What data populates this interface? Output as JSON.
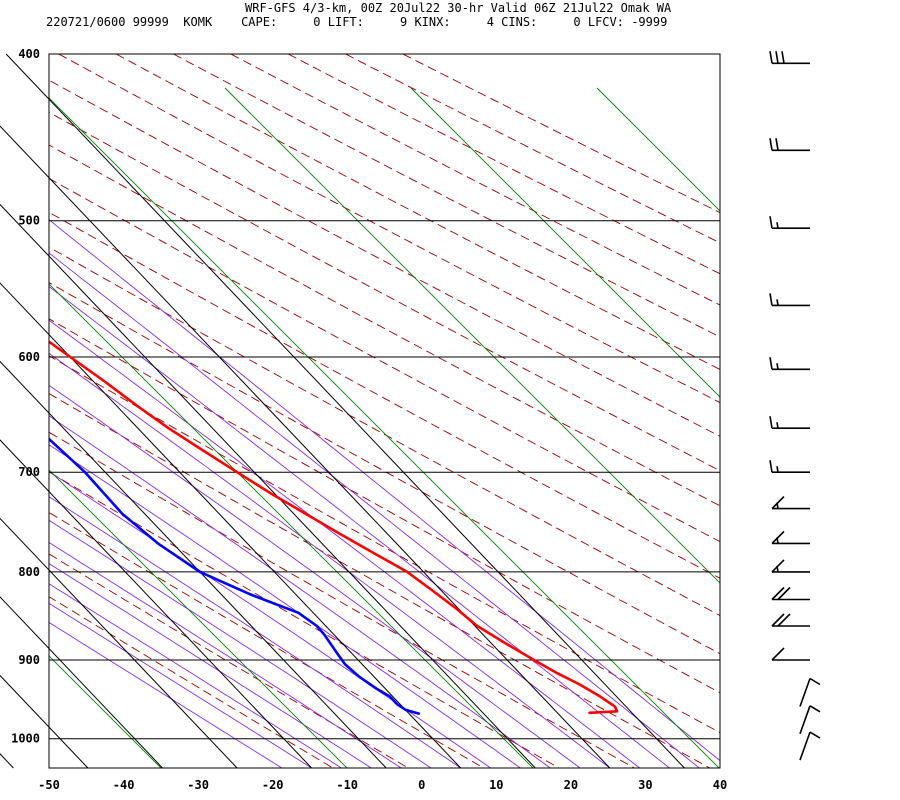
{
  "header": {
    "title": "WRF-GFS 4/3-km, 00Z 20Jul22 30-hr Valid 06Z 21Jul22 Omak WA",
    "stats": "220721/0600 99999  KOMK    CAPE:     0 LIFT:     9 KINX:     4 CINS:     0 LFCV: -9999"
  },
  "chart_data": {
    "type": "line",
    "subtype": "skew-T log-P sounding",
    "title": "WRF-GFS 4/3-km, 00Z 20Jul22 30-hr Valid 06Z 21Jul22 Omak WA",
    "station": "KOMK",
    "valid": "220721/0600",
    "indices": {
      "CAPE": 0,
      "LIFT": 9,
      "KINX": 4,
      "CINS": 0,
      "LFCV": -9999
    },
    "x_axis": {
      "label": "",
      "range": [
        -50,
        40
      ],
      "ticks": [
        -50,
        -40,
        -30,
        -20,
        -10,
        0,
        10,
        20,
        30,
        40
      ]
    },
    "y_axis": {
      "label": "",
      "scale": "log",
      "range_hpa": [
        1040,
        400
      ],
      "ticks": [
        400,
        500,
        600,
        700,
        800,
        900,
        1000
      ]
    },
    "grid": true,
    "colors": {
      "temperature": "#ff0000",
      "dewpoint": "#0000ff",
      "dry_adiabat": "#990000",
      "moist_adiabat": "#8a2be2",
      "mixing_ratio": "#008000",
      "wind_barb": "#000000"
    },
    "series": [
      {
        "kind": "temperature",
        "points": [
          {
            "p": 966,
            "x": 24.3
          },
          {
            "p": 964,
            "x": 28.2
          },
          {
            "p": 958,
            "x": 28.5
          },
          {
            "p": 945,
            "x": 27.8
          },
          {
            "p": 930,
            "x": 26.6
          },
          {
            "p": 915,
            "x": 24.9
          },
          {
            "p": 900,
            "x": 23.6
          },
          {
            "p": 880,
            "x": 21.9
          },
          {
            "p": 860,
            "x": 20.3
          },
          {
            "p": 840,
            "x": 19.7
          },
          {
            "p": 820,
            "x": 18.8
          },
          {
            "p": 800,
            "x": 17.8
          },
          {
            "p": 780,
            "x": 15.7
          },
          {
            "p": 760,
            "x": 13.6
          },
          {
            "p": 740,
            "x": 11.6
          },
          {
            "p": 720,
            "x": 9.5
          },
          {
            "p": 700,
            "x": 7.7
          },
          {
            "p": 680,
            "x": 5.9
          },
          {
            "p": 660,
            "x": 4.1
          },
          {
            "p": 640,
            "x": 2.7
          },
          {
            "p": 620,
            "x": 1.5
          },
          {
            "p": 600,
            "x": 0.0
          },
          {
            "p": 580,
            "x": -1.5
          },
          {
            "p": 560,
            "x": -3.3
          },
          {
            "p": 540,
            "x": -5.1
          },
          {
            "p": 520,
            "x": -6.9
          },
          {
            "p": 500,
            "x": -8.6
          },
          {
            "p": 480,
            "x": -10.5
          },
          {
            "p": 460,
            "x": -12.5
          },
          {
            "p": 440,
            "x": -14.9
          },
          {
            "p": 420,
            "x": -17.3
          },
          {
            "p": 405,
            "x": -19.4
          }
        ]
      },
      {
        "kind": "dewpoint",
        "points": [
          {
            "p": 967,
            "x": 1.3
          },
          {
            "p": 962,
            "x": 0.0
          },
          {
            "p": 955,
            "x": -0.4
          },
          {
            "p": 945,
            "x": -0.4
          },
          {
            "p": 935,
            "x": -1.2
          },
          {
            "p": 920,
            "x": -2.0
          },
          {
            "p": 905,
            "x": -2.3
          },
          {
            "p": 890,
            "x": -1.9
          },
          {
            "p": 870,
            "x": -1.3
          },
          {
            "p": 860,
            "x": -1.2
          },
          {
            "p": 845,
            "x": -2.0
          },
          {
            "p": 825,
            "x": -6.0
          },
          {
            "p": 800,
            "x": -10.0
          },
          {
            "p": 770,
            "x": -12.0
          },
          {
            "p": 740,
            "x": -13.0
          },
          {
            "p": 700,
            "x": -12.7
          },
          {
            "p": 660,
            "x": -13.5
          },
          {
            "p": 640,
            "x": -16.0
          },
          {
            "p": 610,
            "x": -19.5
          },
          {
            "p": 590,
            "x": -22.3
          },
          {
            "p": 570,
            "x": -26.0
          },
          {
            "p": 550,
            "x": -27.4
          },
          {
            "p": 520,
            "x": -29.4
          },
          {
            "p": 500,
            "x": -30.3
          },
          {
            "p": 475,
            "x": -31.0
          },
          {
            "p": 455,
            "x": -31.8
          },
          {
            "p": 430,
            "x": -33.5
          },
          {
            "p": 404,
            "x": -34.3
          }
        ]
      }
    ],
    "wind_barbs": [
      {
        "p": 405,
        "barbs": 3
      },
      {
        "p": 455,
        "barbs": 2
      },
      {
        "p": 505,
        "barbs": 1.5
      },
      {
        "p": 560,
        "barbs": 1.5
      },
      {
        "p": 610,
        "barbs": 1.5
      },
      {
        "p": 660,
        "barbs": 1.5
      },
      {
        "p": 700,
        "barbs": 1.5
      },
      {
        "p": 735,
        "barbs": 1.5
      },
      {
        "p": 770,
        "barbs": 1.5
      },
      {
        "p": 800,
        "barbs": 1.5
      },
      {
        "p": 830,
        "barbs": 2
      },
      {
        "p": 860,
        "barbs": 2
      },
      {
        "p": 900,
        "barbs": 1
      },
      {
        "p": 940,
        "barbs": 0.5
      },
      {
        "p": 975,
        "barbs": 0.5
      },
      {
        "p": 1010,
        "barbs": 0.5
      }
    ]
  }
}
